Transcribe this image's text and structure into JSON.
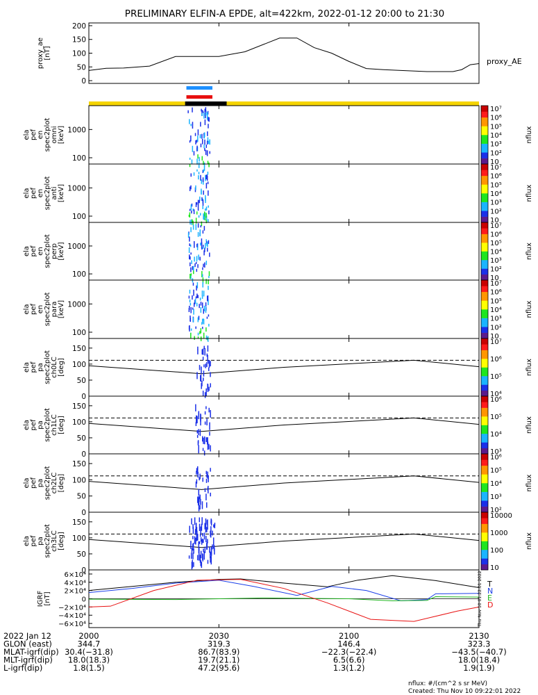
{
  "title": "PRELIMINARY ELFIN-A EPDE, alt=422km, 2022-01-12 20:00 to 21:30",
  "chart_data": [
    {
      "id": "proxy_ae",
      "type": "line",
      "ylabel": [
        "proxy_ae",
        "[nT]"
      ],
      "legend": "proxy_AE",
      "ylim": [
        -10,
        210
      ],
      "yticks": [
        0,
        50,
        100,
        150,
        200
      ],
      "x_minutes": [
        0,
        4,
        8,
        14,
        20,
        26,
        30,
        36,
        44,
        48,
        52,
        56,
        60,
        64,
        68,
        72,
        78,
        84,
        86,
        88,
        90
      ],
      "values": [
        37,
        45,
        46,
        53,
        88,
        88,
        88,
        105,
        155,
        155,
        120,
        100,
        70,
        44,
        40,
        37,
        33,
        33,
        40,
        58,
        62
      ]
    },
    {
      "id": "sci_zones",
      "type": "timeline",
      "legend": "",
      "bars": [
        {
          "color": "#1e90ff",
          "start_min": 22.5,
          "end_min": 28.5
        },
        {
          "color": "#e81010",
          "start_min": 22.5,
          "end_min": 28.5
        }
      ],
      "state_bar": [
        {
          "color": "#f5d400",
          "start_min": 0,
          "end_min": 22.2
        },
        {
          "color": "#000000",
          "start_min": 22.2,
          "end_min": 31.8
        },
        {
          "color": "#f5d400",
          "start_min": 31.8,
          "end_min": 90
        }
      ]
    },
    {
      "id": "ela_pef_en_spec2plot_omni",
      "type": "heatmap",
      "ylabel": [
        "ela",
        "pef",
        "en",
        "spec2plot",
        "omni",
        "[keV]"
      ],
      "ylog": true,
      "ylim": [
        60,
        7000
      ],
      "yticks": [
        100,
        1000
      ],
      "zlabel": "nflux",
      "zlog": true,
      "zlim": [
        10,
        10000000
      ],
      "zticks": [
        "10",
        "10²",
        "10³",
        "10⁴",
        "10⁵",
        "10⁶",
        "10⁷"
      ],
      "active_min": [
        22.8,
        27.8
      ]
    },
    {
      "id": "ela_pef_en_spec2plot_anti",
      "type": "heatmap",
      "ylabel": [
        "ela",
        "pef",
        "en",
        "spec2plot",
        "anti",
        "[keV]"
      ],
      "ylog": true,
      "ylim": [
        60,
        7000
      ],
      "yticks": [
        100,
        1000
      ],
      "zlabel": "nflux",
      "zlog": true,
      "zlim": [
        10,
        10000000
      ],
      "zticks": [
        "10",
        "10²",
        "10³",
        "10⁴",
        "10⁵",
        "10⁶",
        "10⁷"
      ],
      "active_min": [
        23.0,
        27.6
      ]
    },
    {
      "id": "ela_pef_en_spec2plot_perp",
      "type": "heatmap",
      "ylabel": [
        "ela",
        "pef",
        "en",
        "spec2plot",
        "perp",
        "[keV]"
      ],
      "ylog": true,
      "ylim": [
        60,
        7000
      ],
      "yticks": [
        100,
        1000
      ],
      "zlabel": "nflux",
      "zlog": true,
      "zlim": [
        10,
        10000000
      ],
      "zticks": [
        "10",
        "10²",
        "10³",
        "10⁴",
        "10⁵",
        "10⁶",
        "10⁷"
      ],
      "active_min": [
        22.8,
        27.8
      ]
    },
    {
      "id": "ela_pef_en_spec2plot_para",
      "type": "heatmap",
      "ylabel": [
        "ela",
        "pef",
        "en",
        "spec2plot",
        "para",
        "[keV]"
      ],
      "ylog": true,
      "ylim": [
        60,
        7000
      ],
      "yticks": [
        100,
        1000
      ],
      "zlabel": "nflux",
      "zlog": true,
      "zlim": [
        10,
        10000000
      ],
      "zticks": [
        "10",
        "10²",
        "10³",
        "10⁴",
        "10⁵",
        "10⁶",
        "10⁷"
      ],
      "active_min": [
        23.0,
        27.6
      ]
    },
    {
      "id": "ela_pef_pa_spec2plot_ch0LC",
      "type": "heatmap",
      "ylabel": [
        "ela",
        "pef",
        "pa",
        "spec2plot",
        "ch0LC",
        "[deg]"
      ],
      "ylim": [
        0,
        180
      ],
      "yticks": [
        0,
        50,
        100,
        150
      ],
      "zlabel": "nflux",
      "zlog": true,
      "zticks": [
        "10⁴",
        "10⁵",
        "10⁶",
        "10⁷"
      ],
      "lc_dashed_deg": 112,
      "x_minutes": [
        0,
        26,
        45,
        75,
        90
      ],
      "lc_solid_deg": [
        95,
        70,
        90,
        112,
        92
      ],
      "active_min": [
        24.5,
        28.0
      ]
    },
    {
      "id": "ela_pef_pa_spec2plot_ch1LC",
      "type": "heatmap",
      "ylabel": [
        "ela",
        "pef",
        "pa",
        "spec2plot",
        "ch1LC",
        "[deg]"
      ],
      "ylim": [
        0,
        180
      ],
      "yticks": [
        0,
        50,
        100,
        150
      ],
      "zlabel": "nflux",
      "zlog": true,
      "zticks": [
        "10³",
        "10⁴",
        "10⁵",
        "10⁶"
      ],
      "lc_dashed_deg": 112,
      "x_minutes": [
        0,
        26,
        45,
        75,
        90
      ],
      "lc_solid_deg": [
        95,
        70,
        90,
        112,
        92
      ],
      "active_min": [
        24.5,
        28.0
      ]
    },
    {
      "id": "ela_pef_pa_spec2plot_ch2LC",
      "type": "heatmap",
      "ylabel": [
        "ela",
        "pef",
        "pa",
        "spec2plot",
        "ch2LC",
        "[deg]"
      ],
      "ylim": [
        0,
        180
      ],
      "yticks": [
        0,
        50,
        100,
        150
      ],
      "zlabel": "nflux",
      "zlog": true,
      "zticks": [
        "10²",
        "10³",
        "10⁴",
        "10⁵",
        "10⁶"
      ],
      "lc_dashed_deg": 112,
      "x_minutes": [
        0,
        26,
        45,
        75,
        90
      ],
      "lc_solid_deg": [
        95,
        70,
        90,
        112,
        92
      ],
      "active_min": [
        24.5,
        28.0
      ]
    },
    {
      "id": "ela_pef_pa_spec2plot_ch3LC",
      "type": "heatmap",
      "ylabel": [
        "ela",
        "pef",
        "pa",
        "spec2plot",
        "ch3LC",
        "[deg]"
      ],
      "ylim": [
        0,
        180
      ],
      "yticks": [
        0,
        50,
        100,
        150
      ],
      "zlabel": "nflux",
      "zlog": true,
      "zticks": [
        "10",
        "100",
        "1000",
        "10000"
      ],
      "lc_dashed_deg": 112,
      "x_minutes": [
        0,
        26,
        45,
        75,
        90
      ],
      "lc_solid_deg": [
        95,
        70,
        90,
        112,
        92
      ],
      "active_min": [
        23.0,
        29.0
      ]
    },
    {
      "id": "igrf",
      "type": "line",
      "ylabel": [
        "IGRF",
        "[nT]"
      ],
      "ylim": [
        -70000,
        70000
      ],
      "yticks": [
        "6×10⁴",
        "4×10⁴",
        "2×10⁴",
        "0",
        "−2×10⁴",
        "−4×10⁴",
        "−6×10⁴"
      ],
      "ytick_values": [
        60000,
        40000,
        20000,
        0,
        -20000,
        -40000,
        -60000
      ],
      "legend_labels": [
        {
          "text": "T",
          "color": "#000000"
        },
        {
          "text": "N",
          "color": "#1a3ee8"
        },
        {
          "text": "E",
          "color": "#1eb41e"
        },
        {
          "text": "D",
          "color": "#e81010"
        }
      ],
      "series": [
        {
          "name": "T",
          "color": "#000000",
          "x": [
            0,
            10,
            20,
            30,
            35,
            45,
            55,
            62,
            70,
            80,
            90
          ],
          "values": [
            20000,
            30000,
            40000,
            47000,
            48000,
            38000,
            29000,
            45000,
            56000,
            44000,
            27000
          ]
        },
        {
          "name": "N",
          "color": "#1a3ee8",
          "x": [
            0,
            10,
            20,
            30,
            38,
            48,
            56,
            64,
            72,
            78,
            80,
            90
          ],
          "values": [
            15000,
            25000,
            38000,
            45000,
            30000,
            8000,
            30000,
            20000,
            -5000,
            -2000,
            12000,
            13000
          ]
        },
        {
          "name": "E",
          "color": "#1eb41e",
          "x": [
            0,
            20,
            40,
            60,
            70,
            78,
            80,
            90
          ],
          "values": [
            -1000,
            -2000,
            2000,
            0,
            -5000,
            -4000,
            5000,
            4000
          ]
        },
        {
          "name": "D",
          "color": "#e81010",
          "x": [
            0,
            5,
            15,
            25,
            35,
            45,
            55,
            65,
            75,
            85,
            90
          ],
          "values": [
            -20000,
            -18000,
            20000,
            45000,
            47000,
            25000,
            -10000,
            -50000,
            -55000,
            -30000,
            -20000
          ]
        }
      ]
    }
  ],
  "x_axis": {
    "tick_labels": [
      "2000",
      "2030",
      "2100",
      "2130"
    ],
    "tick_minutes": [
      0,
      30,
      60,
      90
    ],
    "rows": [
      {
        "label": "2022 Jan 12",
        "values": [
          "2000",
          "2030",
          "2100",
          "2130"
        ]
      },
      {
        "label": "GLON (east)",
        "values": [
          "344.7",
          "319.3",
          "146.4",
          "323.3"
        ]
      },
      {
        "label": "MLAT-igrf(dip)",
        "values": [
          "30.4(−31.8)",
          "86.7(83.9)",
          "−22.3(−22.4)",
          "−43.5(−40.7)"
        ]
      },
      {
        "label": "MLT-igrf(dip)",
        "values": [
          "18.0(18.3)",
          "19.7(21.1)",
          "6.5(6.6)",
          "18.0(18.4)"
        ]
      },
      {
        "label": "L-igrf(dip)",
        "values": [
          "1.8(1.5)",
          "47.2(95.6)",
          "1.3(1.2)",
          "1.9(1.9)"
        ]
      }
    ]
  },
  "footer": {
    "units": "nflux: #/(cm^2 s sr MeV)",
    "created": "Created: Thu Nov 10 09:22:01 2022",
    "side_stamp": "Thu Nov 10 01:22:01 2022"
  }
}
